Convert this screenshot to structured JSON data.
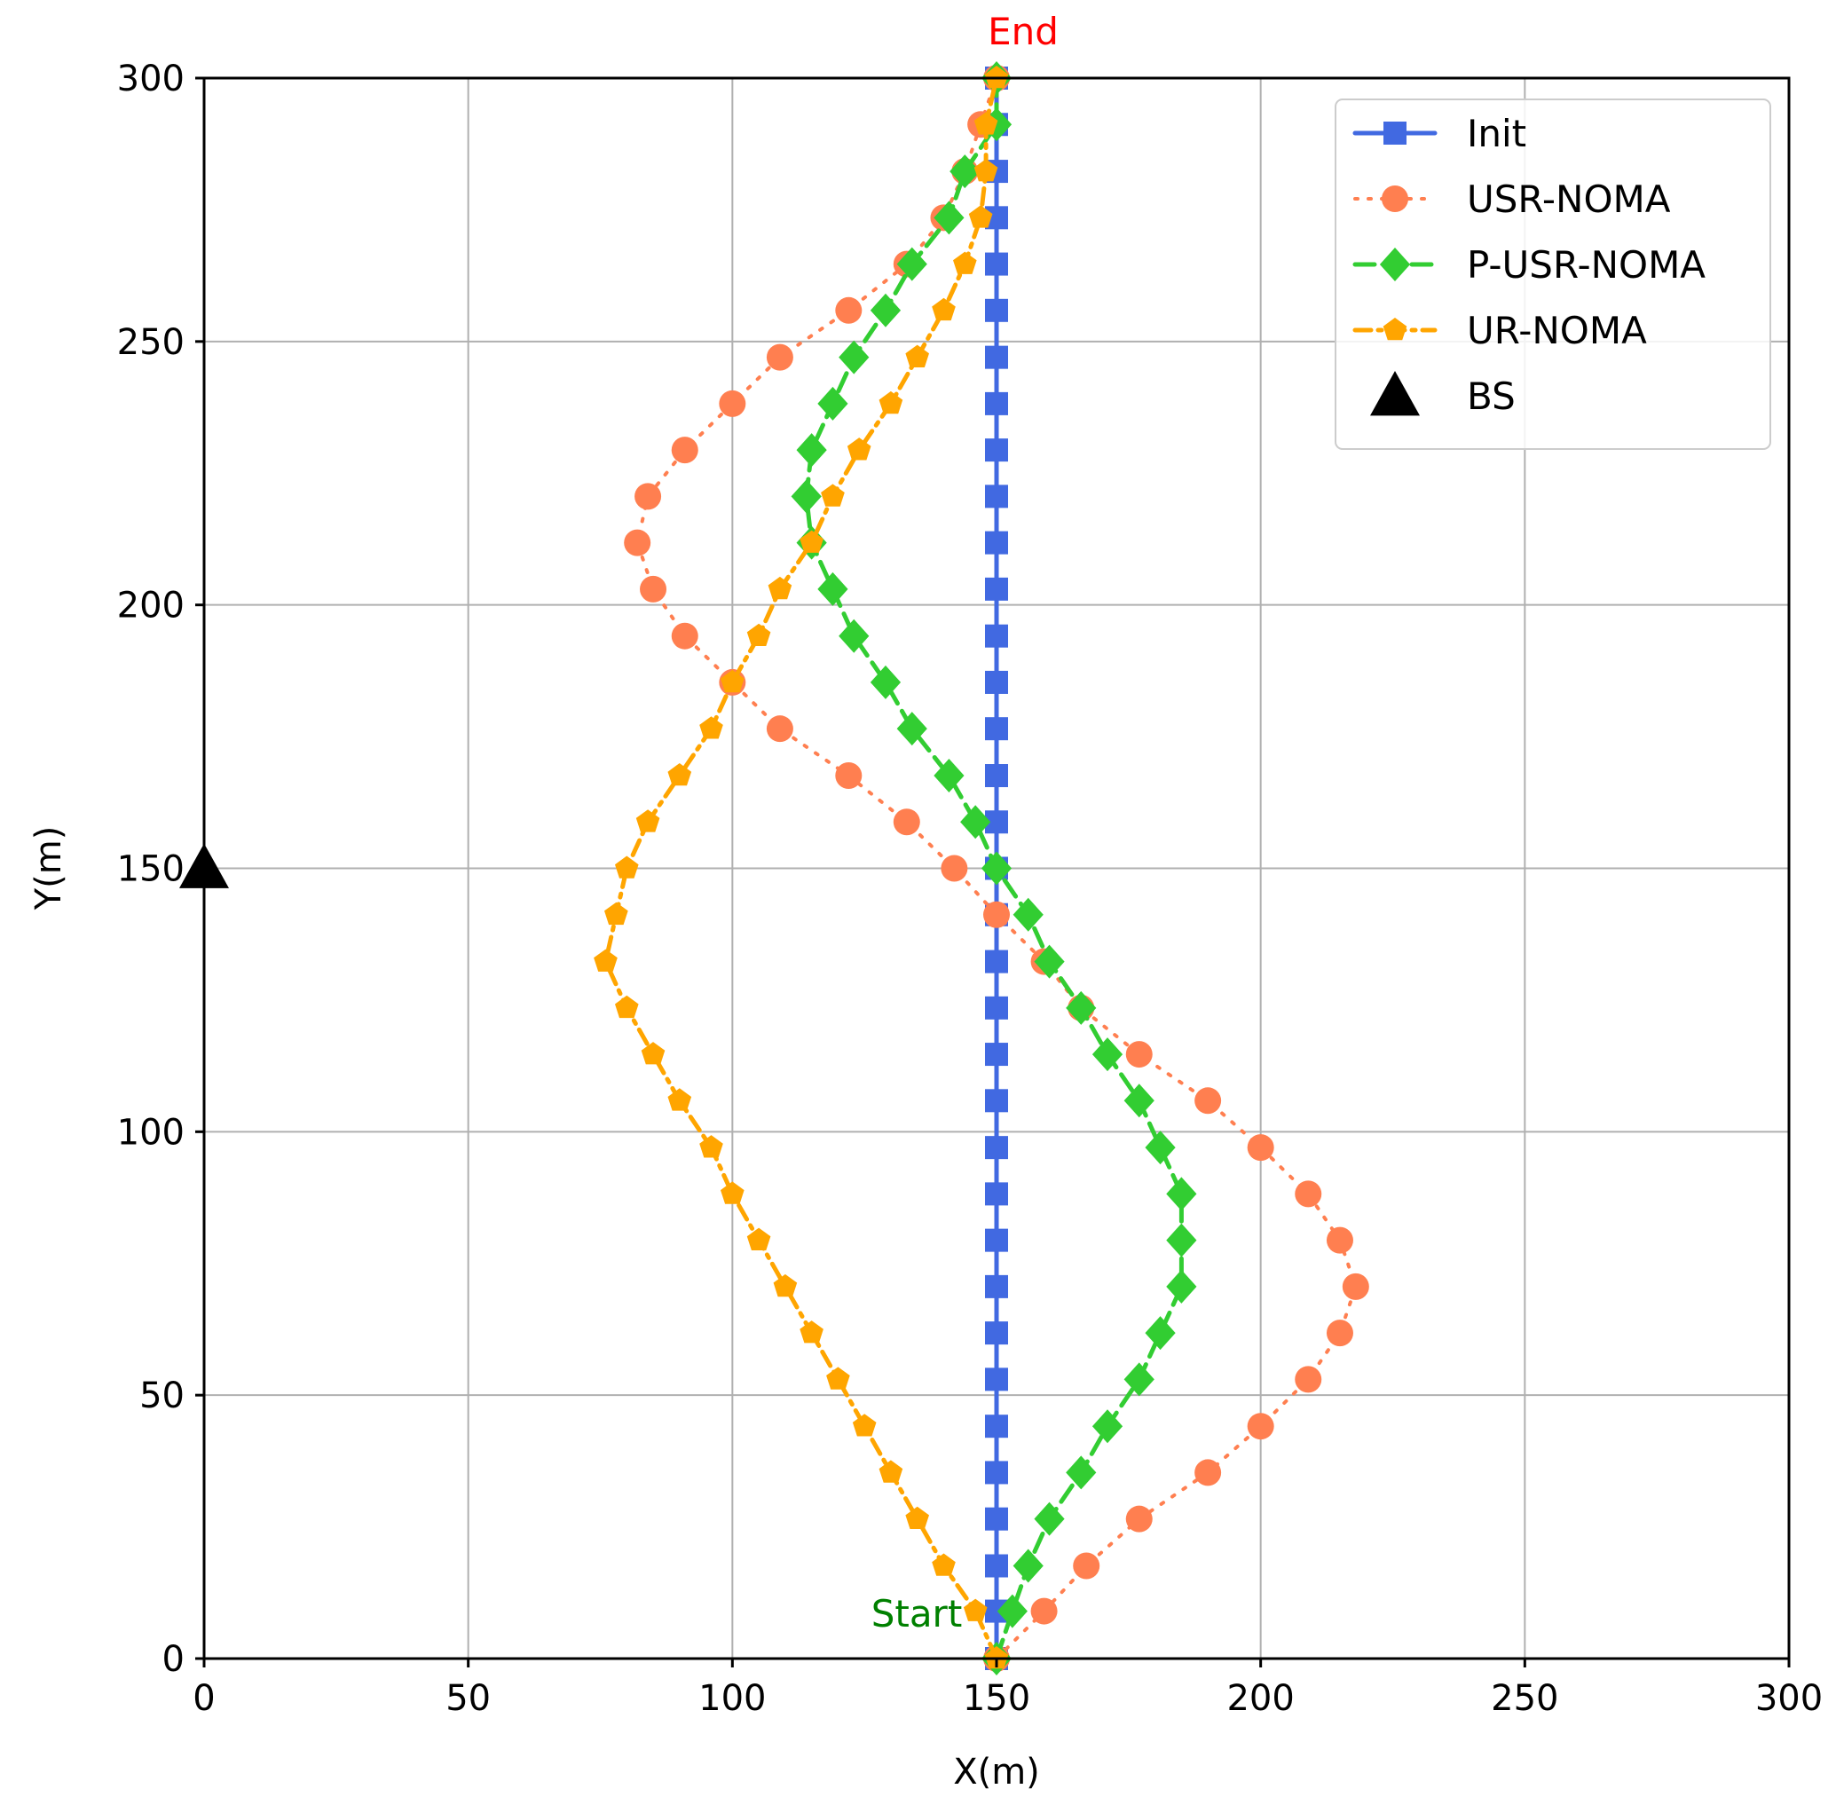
{
  "chart_data": {
    "type": "line",
    "xlabel": "X(m)",
    "ylabel": "Y(m)",
    "xlim": [
      0,
      300
    ],
    "ylim": [
      0,
      300
    ],
    "xticks": [
      "0",
      "50",
      "100",
      "150",
      "200",
      "250",
      "300"
    ],
    "yticks": [
      "0",
      "50",
      "100",
      "150",
      "200",
      "250",
      "300"
    ],
    "grid": true,
    "legend_position": "top-right",
    "annotations": [
      {
        "text": "End",
        "x": 150,
        "y": 300,
        "color": "#ff0000"
      },
      {
        "text": "Start",
        "x": 150,
        "y": 0,
        "color": "#008000"
      }
    ],
    "series": [
      {
        "name": "Init",
        "color": "#4169e1",
        "marker": "square",
        "linestyle": "solid",
        "points": [
          [
            150,
            0
          ],
          [
            150,
            9
          ],
          [
            150,
            17.6
          ],
          [
            150,
            26.5
          ],
          [
            150,
            35.3
          ],
          [
            150,
            44.1
          ],
          [
            150,
            53
          ],
          [
            150,
            61.8
          ],
          [
            150,
            70.6
          ],
          [
            150,
            79.4
          ],
          [
            150,
            88.2
          ],
          [
            150,
            97
          ],
          [
            150,
            105.9
          ],
          [
            150,
            114.7
          ],
          [
            150,
            123.5
          ],
          [
            150,
            132.3
          ],
          [
            150,
            141.2
          ],
          [
            150,
            150
          ],
          [
            150,
            158.8
          ],
          [
            150,
            167.6
          ],
          [
            150,
            176.5
          ],
          [
            150,
            185.3
          ],
          [
            150,
            194.1
          ],
          [
            150,
            203
          ],
          [
            150,
            211.8
          ],
          [
            150,
            220.6
          ],
          [
            150,
            229.4
          ],
          [
            150,
            238.2
          ],
          [
            150,
            247
          ],
          [
            150,
            255.9
          ],
          [
            150,
            264.7
          ],
          [
            150,
            273.5
          ],
          [
            150,
            282.3
          ],
          [
            150,
            291.2
          ],
          [
            150,
            300
          ]
        ]
      },
      {
        "name": "USR-NOMA",
        "color": "#ff7f50",
        "marker": "circle",
        "linestyle": "dotted",
        "points": [
          [
            150,
            0
          ],
          [
            159,
            9
          ],
          [
            167,
            17.6
          ],
          [
            177,
            26.5
          ],
          [
            190,
            35.3
          ],
          [
            200,
            44.1
          ],
          [
            209,
            53
          ],
          [
            215,
            61.8
          ],
          [
            218,
            70.6
          ],
          [
            215,
            79.4
          ],
          [
            209,
            88.2
          ],
          [
            200,
            97
          ],
          [
            190,
            105.9
          ],
          [
            177,
            114.7
          ],
          [
            166,
            123.5
          ],
          [
            159,
            132.3
          ],
          [
            150,
            141.2
          ],
          [
            142,
            150
          ],
          [
            133,
            158.8
          ],
          [
            122,
            167.6
          ],
          [
            109,
            176.5
          ],
          [
            100,
            185.3
          ],
          [
            91,
            194.1
          ],
          [
            85,
            203
          ],
          [
            82,
            211.8
          ],
          [
            84,
            220.6
          ],
          [
            91,
            229.4
          ],
          [
            100,
            238.2
          ],
          [
            109,
            247
          ],
          [
            122,
            255.9
          ],
          [
            133,
            264.7
          ],
          [
            140,
            273.5
          ],
          [
            144,
            282.3
          ],
          [
            147,
            291.2
          ],
          [
            150,
            300
          ]
        ]
      },
      {
        "name": "P-USR-NOMA",
        "color": "#32cd32",
        "marker": "diamond",
        "linestyle": "dashed",
        "points": [
          [
            150,
            0
          ],
          [
            153,
            9
          ],
          [
            156,
            17.6
          ],
          [
            160,
            26.5
          ],
          [
            166,
            35.3
          ],
          [
            171,
            44.1
          ],
          [
            177,
            53
          ],
          [
            181,
            61.8
          ],
          [
            185,
            70.6
          ],
          [
            185,
            79.4
          ],
          [
            185,
            88.2
          ],
          [
            181,
            97
          ],
          [
            177,
            105.9
          ],
          [
            171,
            114.7
          ],
          [
            166,
            123.5
          ],
          [
            160,
            132.3
          ],
          [
            156,
            141.2
          ],
          [
            150,
            150
          ],
          [
            146,
            158.8
          ],
          [
            141,
            167.6
          ],
          [
            134,
            176.5
          ],
          [
            129,
            185.3
          ],
          [
            123,
            194.1
          ],
          [
            119,
            203
          ],
          [
            115,
            211.8
          ],
          [
            114,
            220.6
          ],
          [
            115,
            229.4
          ],
          [
            119,
            238.2
          ],
          [
            123,
            247
          ],
          [
            129,
            255.9
          ],
          [
            134,
            264.7
          ],
          [
            141,
            273.5
          ],
          [
            144,
            282.3
          ],
          [
            150,
            291.2
          ],
          [
            150,
            300
          ]
        ]
      },
      {
        "name": "UR-NOMA",
        "color": "#ffa500",
        "marker": "pentagon",
        "linestyle": "dashdot",
        "points": [
          [
            150,
            0
          ],
          [
            146,
            9
          ],
          [
            140,
            17.6
          ],
          [
            135,
            26.5
          ],
          [
            130,
            35.3
          ],
          [
            125,
            44.1
          ],
          [
            120,
            53
          ],
          [
            115,
            61.8
          ],
          [
            110,
            70.6
          ],
          [
            105,
            79.4
          ],
          [
            100,
            88.2
          ],
          [
            96,
            97
          ],
          [
            90,
            105.9
          ],
          [
            85,
            114.7
          ],
          [
            80,
            123.5
          ],
          [
            76,
            132.3
          ],
          [
            78,
            141.2
          ],
          [
            80,
            150
          ],
          [
            84,
            158.8
          ],
          [
            90,
            167.6
          ],
          [
            96,
            176.5
          ],
          [
            100,
            185.3
          ],
          [
            105,
            194.1
          ],
          [
            109,
            203
          ],
          [
            115,
            211.8
          ],
          [
            119,
            220.6
          ],
          [
            124,
            229.4
          ],
          [
            130,
            238.2
          ],
          [
            135,
            247
          ],
          [
            140,
            255.9
          ],
          [
            144,
            264.7
          ],
          [
            147,
            273.5
          ],
          [
            148,
            282.3
          ],
          [
            148,
            291.2
          ],
          [
            150,
            300
          ]
        ]
      },
      {
        "name": "BS",
        "color": "#000000",
        "marker": "triangle",
        "linestyle": "none",
        "points": [
          [
            0,
            150
          ]
        ]
      }
    ]
  }
}
